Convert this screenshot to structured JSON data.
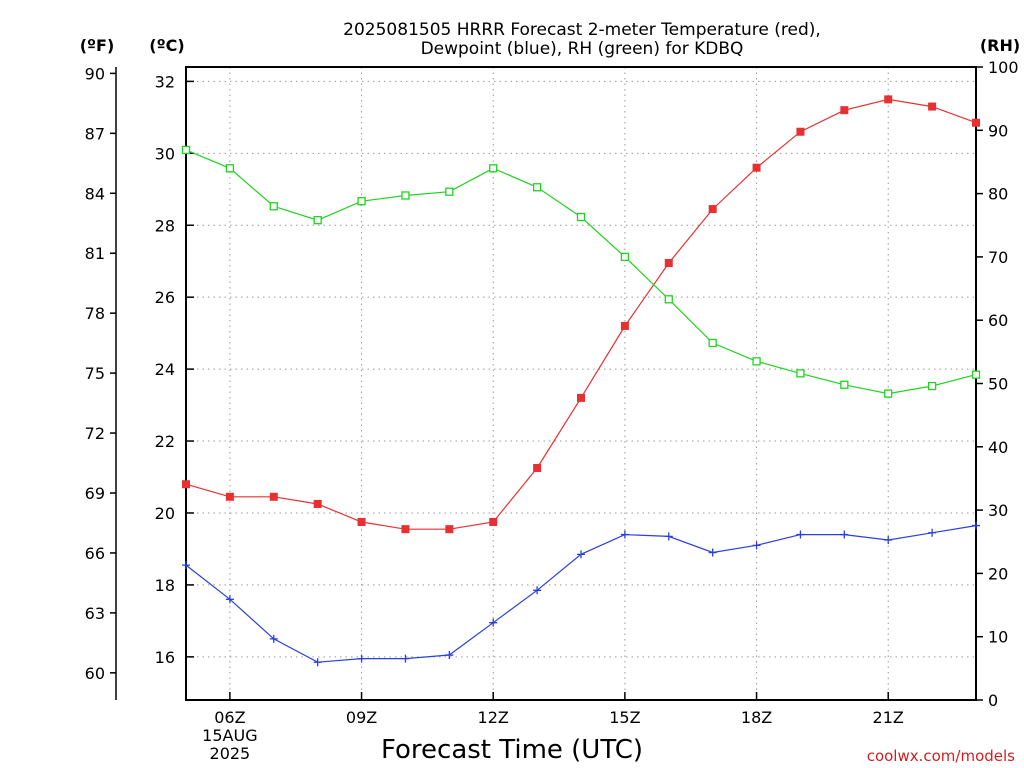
{
  "chart_data": {
    "type": "line",
    "title_line1": "2025081505 HRRR Forecast 2-meter Temperature (red),",
    "title_line2": "Dewpoint (blue), RH (green) for KDBQ",
    "xlabel": "Forecast Time (UTC)",
    "credit": "coolwx.com/models",
    "units": {
      "fahrenheit": "(ºF)",
      "celsius": "(ºC)",
      "rh": "(RH)"
    },
    "x_hours": [
      5,
      6,
      7,
      8,
      9,
      10,
      11,
      12,
      13,
      14,
      15,
      16,
      17,
      18,
      19,
      20,
      21,
      22,
      23
    ],
    "x_ticks": [
      {
        "hour": 6,
        "label": "06Z",
        "sub1": "15AUG",
        "sub2": "2025"
      },
      {
        "hour": 9,
        "label": "09Z"
      },
      {
        "hour": 12,
        "label": "12Z"
      },
      {
        "hour": 15,
        "label": "15Z"
      },
      {
        "hour": 18,
        "label": "18Z"
      },
      {
        "hour": 21,
        "label": "21Z"
      }
    ],
    "xlim": [
      5,
      23
    ],
    "celsius_axis": {
      "lim": [
        14.8,
        32.4
      ],
      "ticks": [
        "16",
        "18",
        "20",
        "22",
        "24",
        "26",
        "28",
        "30",
        "32"
      ]
    },
    "fahrenheit_axis": {
      "lim": [
        58.64,
        90.32
      ],
      "ticks": [
        "60",
        "63",
        "66",
        "69",
        "72",
        "75",
        "78",
        "81",
        "84",
        "87",
        "90"
      ]
    },
    "rh_axis": {
      "lim": [
        0,
        100
      ],
      "ticks": [
        "0",
        "10",
        "20",
        "30",
        "40",
        "50",
        "60",
        "70",
        "80",
        "90",
        "100"
      ]
    },
    "series": [
      {
        "name": "Temperature",
        "axis": "celsius",
        "color": "#e83030",
        "marker": "filled-square",
        "values": [
          20.8,
          20.45,
          20.45,
          20.25,
          19.75,
          19.55,
          19.55,
          19.75,
          21.25,
          23.2,
          25.2,
          26.95,
          28.45,
          29.6,
          30.6,
          31.2,
          31.5,
          31.3,
          30.85
        ]
      },
      {
        "name": "Dewpoint",
        "axis": "celsius",
        "color": "#2a3fe0",
        "marker": "plus",
        "values": [
          18.55,
          17.6,
          16.5,
          15.85,
          15.95,
          15.95,
          16.05,
          16.95,
          17.85,
          18.85,
          19.4,
          19.35,
          18.9,
          19.1,
          19.4,
          19.4,
          19.25,
          19.45,
          19.65
        ]
      },
      {
        "name": "RH",
        "axis": "rh",
        "color": "#1fd41f",
        "marker": "open-square",
        "values": [
          86.9,
          84.0,
          78.0,
          75.8,
          78.8,
          79.7,
          80.3,
          84.0,
          81.0,
          76.3,
          70.0,
          63.3,
          56.4,
          53.5,
          51.6,
          49.8,
          48.4,
          49.6,
          51.4
        ]
      }
    ],
    "grid": true
  }
}
